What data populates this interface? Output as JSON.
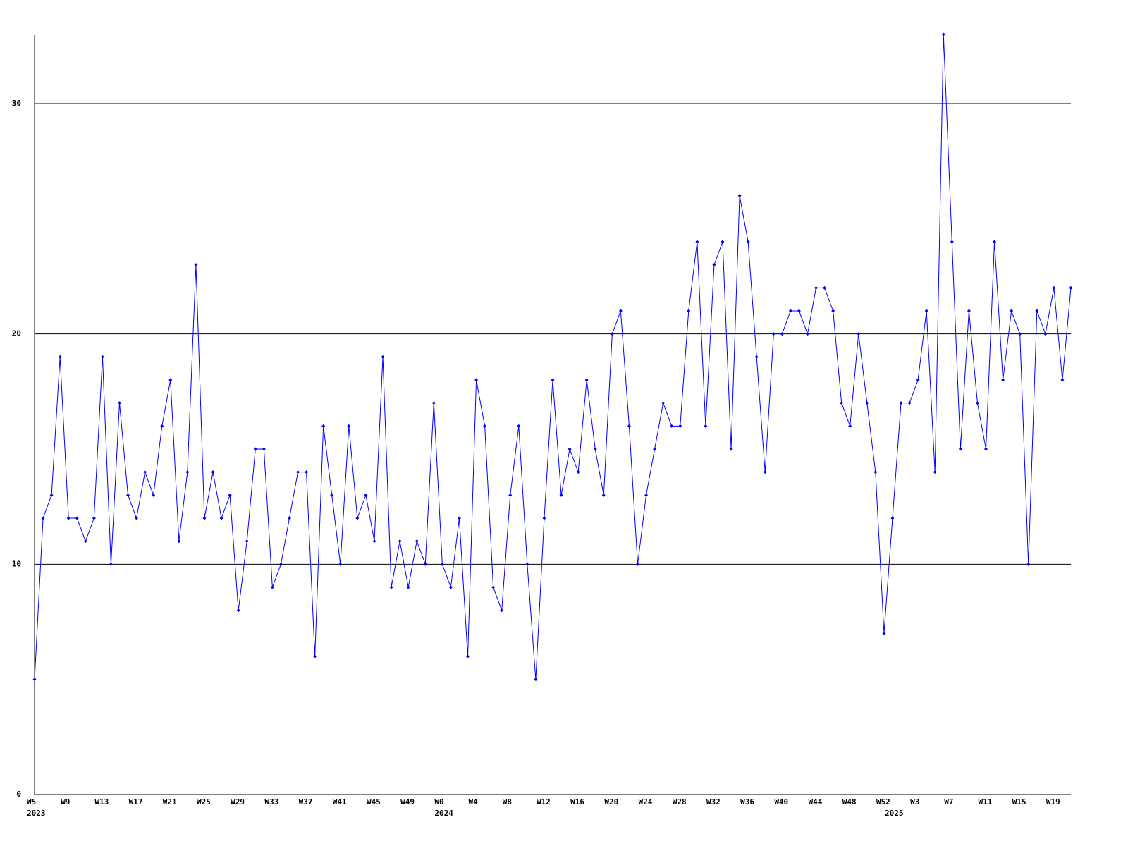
{
  "chart_data": {
    "type": "line",
    "categories": [
      "W5",
      null,
      null,
      null,
      "W9",
      null,
      null,
      null,
      "W13",
      null,
      null,
      null,
      "W17",
      null,
      null,
      null,
      "W21",
      null,
      null,
      null,
      "W25",
      null,
      null,
      null,
      "W29",
      null,
      null,
      null,
      "W33",
      null,
      null,
      null,
      "W37",
      null,
      null,
      null,
      "W41",
      null,
      null,
      null,
      "W45",
      null,
      null,
      null,
      "W49",
      null,
      null,
      null,
      "W0",
      null,
      null,
      null,
      "W4",
      null,
      null,
      null,
      "W8",
      null,
      null,
      null,
      "W12",
      null,
      null,
      null,
      "W16",
      null,
      null,
      null,
      "W20",
      null,
      null,
      null,
      "W24",
      null,
      null,
      null,
      "W28",
      null,
      null,
      null,
      "W32",
      null,
      null,
      null,
      "W36",
      null,
      null,
      null,
      "W40",
      null,
      null,
      null,
      "W44",
      null,
      null,
      null,
      "W48",
      null,
      null,
      null,
      "W52",
      null,
      null,
      null,
      "W3",
      null,
      null,
      null,
      "W7",
      null,
      null,
      null,
      "W11",
      null,
      null,
      null,
      "W15",
      null,
      null,
      null,
      "W19",
      null,
      null
    ],
    "year_labels": [
      "2023",
      null,
      null,
      null,
      null,
      null,
      null,
      null,
      null,
      null,
      null,
      null,
      null,
      null,
      null,
      null,
      null,
      null,
      null,
      null,
      null,
      null,
      null,
      null,
      null,
      null,
      null,
      null,
      null,
      null,
      null,
      null,
      null,
      null,
      null,
      null,
      null,
      null,
      null,
      null,
      null,
      null,
      null,
      null,
      null,
      null,
      null,
      null,
      "2024",
      null,
      null,
      null,
      null,
      null,
      null,
      null,
      null,
      null,
      null,
      null,
      null,
      null,
      null,
      null,
      null,
      null,
      null,
      null,
      null,
      null,
      null,
      null,
      null,
      null,
      null,
      null,
      null,
      null,
      null,
      null,
      null,
      null,
      null,
      null,
      null,
      null,
      null,
      null,
      null,
      null,
      null,
      null,
      null,
      null,
      null,
      null,
      null,
      null,
      null,
      null,
      null,
      "2025",
      null,
      null,
      null,
      null,
      null,
      null,
      null,
      null,
      null,
      null,
      null,
      null,
      null,
      null,
      null,
      null,
      null,
      null,
      null,
      null,
      null
    ],
    "values": [
      5,
      12,
      13,
      19,
      12,
      12,
      11,
      12,
      19,
      10,
      17,
      13,
      12,
      14,
      13,
      16,
      18,
      11,
      14,
      23,
      12,
      14,
      12,
      13,
      8,
      11,
      15,
      15,
      9,
      10,
      12,
      14,
      14,
      6,
      16,
      13,
      10,
      16,
      12,
      13,
      11,
      19,
      9,
      11,
      9,
      11,
      10,
      17,
      10,
      9,
      12,
      6,
      18,
      16,
      9,
      8,
      13,
      16,
      10,
      5,
      12,
      18,
      13,
      15,
      14,
      18,
      15,
      13,
      20,
      21,
      16,
      10,
      13,
      15,
      17,
      16,
      16,
      21,
      24,
      16,
      23,
      24,
      15,
      26,
      24,
      19,
      14,
      20,
      20,
      21,
      21,
      20,
      22,
      22,
      21,
      17,
      16,
      20,
      17,
      14,
      7,
      12,
      17,
      17,
      18,
      21,
      14,
      33,
      24,
      15,
      21,
      17,
      15,
      24,
      18,
      21,
      20,
      10,
      21,
      20,
      22,
      18,
      22
    ],
    "color": "#0000ff",
    "ylim": [
      0,
      33
    ],
    "yticks": [
      0,
      10,
      20,
      30
    ],
    "grid": true
  }
}
